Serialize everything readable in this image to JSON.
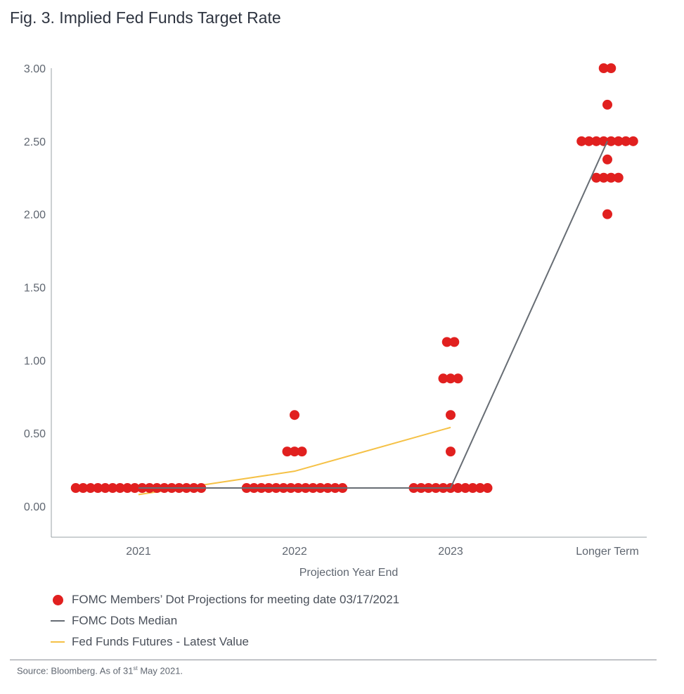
{
  "figure": {
    "title": "Fig. 3. Implied Fed Funds Target Rate",
    "source_prefix": "Source: Bloomberg. As of 31",
    "source_sup": "st",
    "source_suffix": " May 2021."
  },
  "colors": {
    "dots": "#e1201f",
    "median": "#676d74",
    "futures": "#f5c146",
    "axis": "#9aa0a6"
  },
  "chart_data": {
    "type": "scatter",
    "xlabel": "Projection Year End",
    "categories": [
      "2021",
      "2022",
      "2023",
      "Longer Term"
    ],
    "ylim": [
      -0.2,
      3.0
    ],
    "yticks": [
      0.0,
      0.5,
      1.0,
      1.5,
      2.0,
      2.5,
      3.0
    ],
    "ytick_labels": [
      "0.00",
      "0.50",
      "1.00",
      "1.50",
      "2.00",
      "2.50",
      "3.00"
    ],
    "grid": false,
    "legend_position": "bottom",
    "series": [
      {
        "name": "FOMC Members’ Dot Projections for meeting date 03/17/2021",
        "kind": "dots",
        "groups": [
          {
            "category": "2021",
            "levels": [
              {
                "y": 0.125,
                "count": 18
              }
            ]
          },
          {
            "category": "2022",
            "levels": [
              {
                "y": 0.125,
                "count": 14
              },
              {
                "y": 0.375,
                "count": 3
              },
              {
                "y": 0.625,
                "count": 1
              }
            ]
          },
          {
            "category": "2023",
            "levels": [
              {
                "y": 0.125,
                "count": 11
              },
              {
                "y": 0.375,
                "count": 1
              },
              {
                "y": 0.625,
                "count": 1
              },
              {
                "y": 0.875,
                "count": 3
              },
              {
                "y": 1.125,
                "count": 2
              }
            ]
          },
          {
            "category": "Longer Term",
            "levels": [
              {
                "y": 2.0,
                "count": 1
              },
              {
                "y": 2.25,
                "count": 4
              },
              {
                "y": 2.375,
                "count": 1
              },
              {
                "y": 2.5,
                "count": 8
              },
              {
                "y": 2.75,
                "count": 1
              },
              {
                "y": 3.0,
                "count": 2
              }
            ]
          }
        ]
      },
      {
        "name": "FOMC Dots Median",
        "kind": "line",
        "points": [
          {
            "category": "2021",
            "y": 0.125
          },
          {
            "category": "2022",
            "y": 0.125
          },
          {
            "category": "2023",
            "y": 0.125
          },
          {
            "category": "Longer Term",
            "y": 2.5
          }
        ]
      },
      {
        "name": "Fed Funds Futures - Latest Value",
        "kind": "line",
        "points": [
          {
            "category": "2021",
            "y": 0.08
          },
          {
            "category": "2022",
            "y": 0.24
          },
          {
            "category": "2023",
            "y": 0.54
          }
        ]
      }
    ]
  }
}
